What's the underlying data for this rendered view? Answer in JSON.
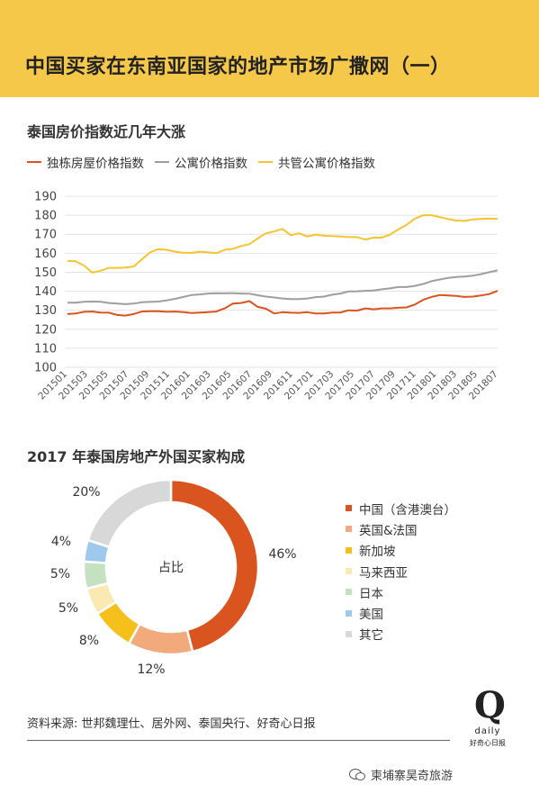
{
  "header": {
    "title": "中国买家在东南亚国家的地产市场广撒网（一）"
  },
  "chart_data": [
    {
      "type": "line",
      "title": "泰国房价指数近几年大涨",
      "ylim": [
        100,
        190
      ],
      "yticks": [
        100,
        110,
        120,
        130,
        140,
        150,
        160,
        170,
        180,
        190
      ],
      "xtick_labels": [
        "201501",
        "201503",
        "201505",
        "201507",
        "201509",
        "201511",
        "201601",
        "201603",
        "201605",
        "201607",
        "201609",
        "201611",
        "201701",
        "201703",
        "201705",
        "201707",
        "201709",
        "201711",
        "201801",
        "201803",
        "201805",
        "201807"
      ],
      "grid": true,
      "legend_position": "top",
      "series": [
        {
          "name": "独栋房屋价格指数",
          "color": "#d9541e",
          "values": [
            128,
            128.3,
            129.2,
            129.3,
            128.8,
            128.7,
            127.5,
            127.2,
            128,
            129.3,
            129.5,
            129.5,
            129.2,
            129.3,
            129,
            128.5,
            128.8,
            129,
            129.3,
            131,
            133.5,
            133.8,
            134.8,
            131.8,
            130.8,
            128.3,
            129,
            128.7,
            128.6,
            129,
            128.3,
            128.3,
            128.8,
            128.8,
            130,
            129.8,
            131,
            130.5,
            131,
            131,
            131.3,
            131.5,
            133,
            135.5,
            137,
            138,
            137.8,
            137.5,
            137,
            137.2,
            137.8,
            138.5,
            140.2
          ]
        },
        {
          "name": "公寓价格指数",
          "color": "#9e9e9e",
          "values": [
            134,
            134,
            134.5,
            134.6,
            134.5,
            133.8,
            133.5,
            133.2,
            133.5,
            134.2,
            134.4,
            134.6,
            135.2,
            136,
            137,
            138,
            138.3,
            138.8,
            139,
            138.9,
            139,
            138.8,
            138.7,
            137.9,
            137.2,
            136.7,
            136.2,
            135.9,
            135.9,
            136.2,
            136.9,
            137.2,
            138.2,
            138.8,
            139.9,
            140,
            140.2,
            140.4,
            141,
            141.5,
            142.2,
            142.2,
            142.8,
            143.8,
            145.3,
            146.2,
            147,
            147.5,
            147.7,
            148.2,
            149,
            150,
            151
          ]
        },
        {
          "name": "共管公寓价格指数",
          "color": "#f6c331",
          "values": [
            156,
            155.8,
            153.5,
            149.8,
            150.8,
            152.3,
            152.3,
            152.5,
            153,
            156.8,
            160.5,
            162.2,
            161.8,
            160.8,
            160.3,
            160.2,
            160.8,
            160.5,
            160,
            161.8,
            162.3,
            163.8,
            164.8,
            167.8,
            170.5,
            171.5,
            172.8,
            169.5,
            170.5,
            168.8,
            169.8,
            169.2,
            169,
            168.8,
            168.5,
            168.5,
            167.2,
            168.2,
            168.2,
            169.8,
            172.5,
            175,
            178.2,
            180,
            180,
            179,
            178,
            177.2,
            177,
            177.8,
            178,
            178.2,
            178
          ]
        }
      ]
    },
    {
      "type": "pie",
      "title": "2017 年泰国房地产外国买家构成",
      "center_label": "占比",
      "slices": [
        {
          "label": "中国（含港澳台）",
          "value": 46,
          "display": "46%",
          "color": "#d9541e"
        },
        {
          "label": "英国&法国",
          "value": 12,
          "display": "12%",
          "color": "#f2a97c"
        },
        {
          "label": "新加坡",
          "value": 8,
          "display": "8%",
          "color": "#f6c01a"
        },
        {
          "label": "马来西亚",
          "value": 5,
          "display": "5%",
          "color": "#faeab2"
        },
        {
          "label": "日本",
          "value": 5,
          "display": "5%",
          "color": "#c5e2c0"
        },
        {
          "label": "美国",
          "value": 4,
          "display": "4%",
          "color": "#9fc9ec"
        },
        {
          "label": "其它",
          "value": 20,
          "display": "20%",
          "color": "#d8d8d8"
        }
      ]
    }
  ],
  "source": "资料来源: 世邦魏理仕、居外网、泰国央行、好奇心日报",
  "logo": {
    "letter": "Q",
    "word": "daily",
    "sub": "好奇心日报"
  },
  "watermark": "柬埔寨昊奇旅游"
}
